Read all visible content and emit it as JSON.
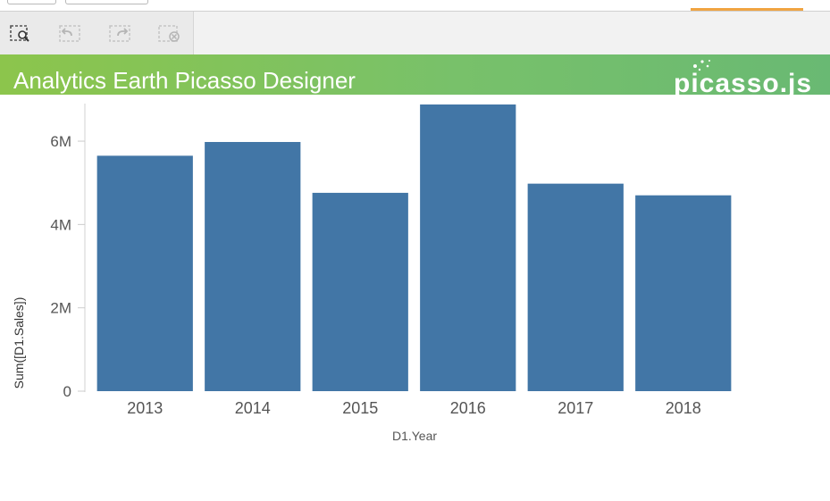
{
  "toolbar": {
    "buttons": [
      {
        "name": "lasso-select-button",
        "icon": "lasso-select-icon",
        "enabled": true
      },
      {
        "name": "undo-button",
        "icon": "undo-icon",
        "enabled": false
      },
      {
        "name": "redo-button",
        "icon": "redo-icon",
        "enabled": false
      },
      {
        "name": "clear-selection-button",
        "icon": "clear-selection-icon",
        "enabled": false
      }
    ]
  },
  "header": {
    "title": "Analytics Earth Picasso Designer",
    "logo_text": "picasso.js"
  },
  "colors": {
    "banner_start": "#8cc54c",
    "banner_end": "#69b973",
    "bar": "#4276a6",
    "accent": "#f0a441"
  },
  "chart_data": {
    "type": "bar",
    "categories": [
      "2013",
      "2014",
      "2015",
      "2016",
      "2017",
      "2018"
    ],
    "values": [
      5650000,
      5980000,
      4760000,
      6880000,
      4980000,
      4700000
    ],
    "xlabel": "D1.Year",
    "ylabel": "Sum([D1.Sales])",
    "ylim": [
      0,
      6880000
    ],
    "yticks": [
      {
        "value": 0,
        "label": "0"
      },
      {
        "value": 2000000,
        "label": "2M"
      },
      {
        "value": 4000000,
        "label": "4M"
      },
      {
        "value": 6000000,
        "label": "6M"
      }
    ],
    "grid": false,
    "legend": "none"
  }
}
